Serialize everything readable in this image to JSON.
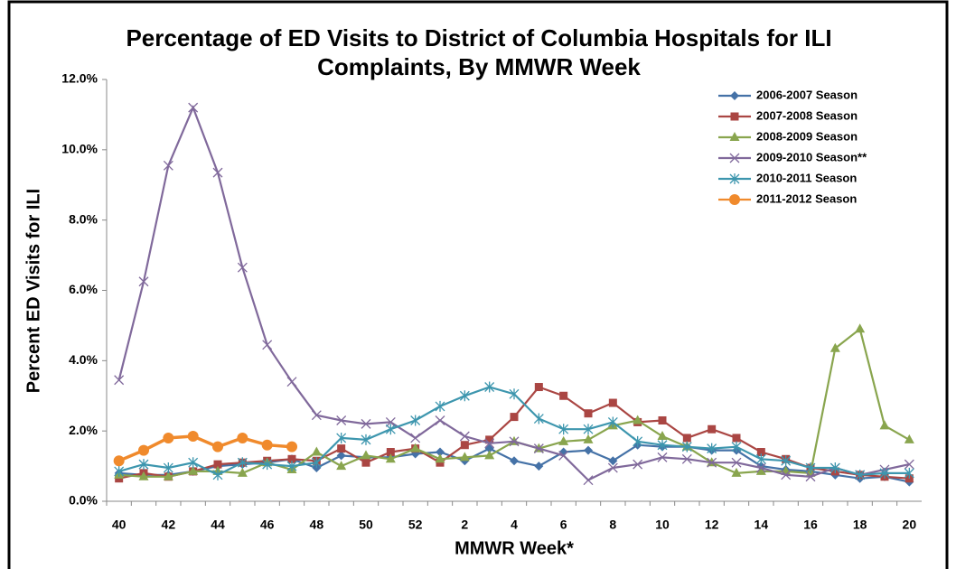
{
  "chart_data": {
    "type": "line",
    "title": "Percentage of ED Visits to District of Columbia Hospitals for ILI Complaints, By MMWR Week",
    "x_label": "MMWR Week*",
    "y_label": "Percent ED Visits for ILI",
    "categories": [
      40,
      null,
      42,
      null,
      44,
      null,
      46,
      null,
      48,
      null,
      50,
      null,
      52,
      null,
      2,
      null,
      4,
      null,
      6,
      null,
      8,
      null,
      10,
      null,
      12,
      null,
      14,
      null,
      16,
      null,
      18,
      null,
      20
    ],
    "ylim": [
      0,
      12
    ],
    "yticks": [
      {
        "value": 0,
        "label": "0.0%"
      },
      {
        "value": 2,
        "label": "2.0%"
      },
      {
        "value": 4,
        "label": "4.0%"
      },
      {
        "value": 6,
        "label": "6.0%"
      },
      {
        "value": 8,
        "label": "8.0%"
      },
      {
        "value": 10,
        "label": "10.0%"
      },
      {
        "value": 12,
        "label": "12.0%"
      }
    ],
    "grid": false,
    "legend": "upper right",
    "series": [
      {
        "name": "2006-2007 Season",
        "color": "#4572a7",
        "marker": "diamond",
        "values": [
          0.8,
          0.75,
          0.75,
          0.85,
          1.0,
          1.05,
          1.1,
          1.2,
          0.95,
          1.3,
          1.25,
          1.25,
          1.35,
          1.4,
          1.15,
          1.5,
          1.15,
          1.0,
          1.4,
          1.45,
          1.15,
          1.6,
          1.55,
          1.55,
          1.45,
          1.45,
          1.0,
          0.9,
          0.85,
          0.75,
          0.65,
          0.7,
          0.55
        ]
      },
      {
        "name": "2007-2008 Season",
        "color": "#aa4643",
        "marker": "square",
        "values": [
          0.65,
          0.8,
          0.7,
          0.85,
          1.05,
          1.1,
          1.15,
          1.2,
          1.15,
          1.5,
          1.1,
          1.4,
          1.5,
          1.1,
          1.6,
          1.75,
          2.4,
          3.25,
          3.0,
          2.5,
          2.8,
          2.25,
          2.3,
          1.8,
          2.05,
          1.8,
          1.4,
          1.2,
          0.95,
          0.85,
          0.75,
          0.7,
          0.65
        ]
      },
      {
        "name": "2008-2009 Season",
        "color": "#89a54e",
        "marker": "triangle",
        "values": [
          0.75,
          0.7,
          0.7,
          0.85,
          0.85,
          0.8,
          1.1,
          0.9,
          1.4,
          1.0,
          1.3,
          1.2,
          1.5,
          1.2,
          1.25,
          1.3,
          1.7,
          1.5,
          1.7,
          1.75,
          2.15,
          2.3,
          1.85,
          1.55,
          1.1,
          0.8,
          0.85,
          0.85,
          0.8,
          4.35,
          4.9,
          2.15,
          1.75
        ]
      },
      {
        "name": "2009-2010 Season**",
        "color": "#80699b",
        "marker": "x",
        "values": [
          3.45,
          6.25,
          9.55,
          11.2,
          9.35,
          6.65,
          4.45,
          3.4,
          2.45,
          2.3,
          2.2,
          2.25,
          1.8,
          2.3,
          1.85,
          1.65,
          1.7,
          1.5,
          1.3,
          0.6,
          0.95,
          1.05,
          1.25,
          1.2,
          1.1,
          1.1,
          0.95,
          0.75,
          0.7,
          0.95,
          0.75,
          0.9,
          1.05
        ]
      },
      {
        "name": "2010-2011 Season",
        "color": "#3d96ae",
        "marker": "star",
        "values": [
          0.85,
          1.05,
          0.95,
          1.1,
          0.75,
          1.1,
          1.05,
          1.0,
          1.1,
          1.8,
          1.75,
          2.05,
          2.3,
          2.7,
          3.0,
          3.25,
          3.05,
          2.35,
          2.05,
          2.05,
          2.25,
          1.7,
          1.6,
          1.55,
          1.5,
          1.55,
          1.2,
          1.15,
          0.95,
          0.95,
          0.75,
          0.8,
          0.8
        ]
      },
      {
        "name": "2011-2012 Season",
        "color": "#f08a2c",
        "marker": "circle",
        "values": [
          1.15,
          1.45,
          1.8,
          1.85,
          1.55,
          1.8,
          1.6,
          1.55,
          null,
          null,
          null,
          null,
          null,
          null,
          null,
          null,
          null,
          null,
          null,
          null,
          null,
          null,
          null,
          null,
          null,
          null,
          null,
          null,
          null,
          null,
          null,
          null,
          null
        ]
      }
    ]
  }
}
